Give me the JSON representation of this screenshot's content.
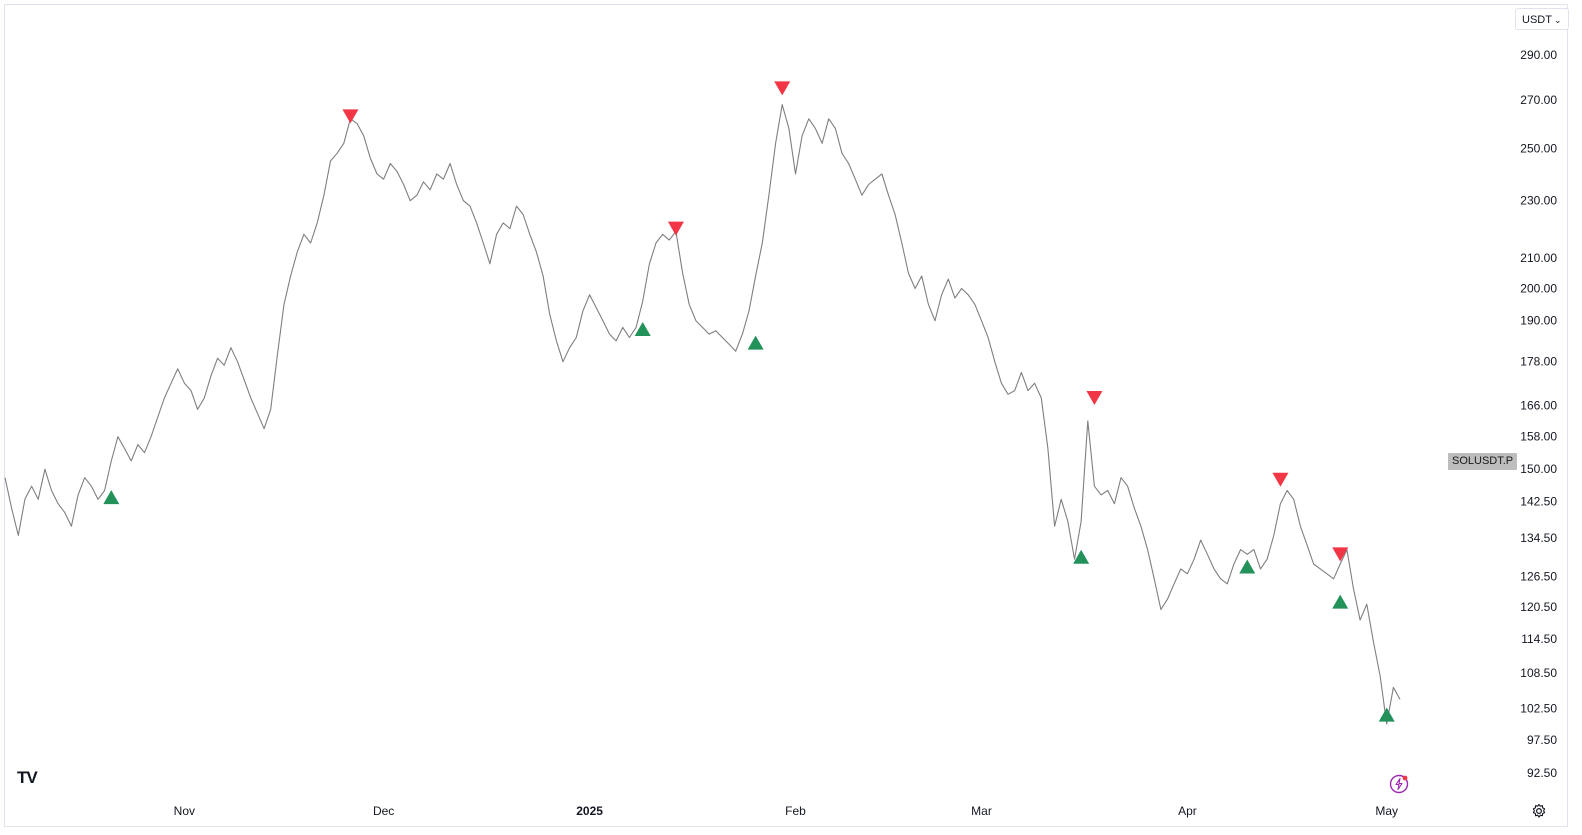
{
  "header": {
    "currency_label": "USDT"
  },
  "symbol_label": "SOLUSDT.P",
  "logo_text": "TV",
  "icons": {
    "currency_chevron": "chevron-down-icon",
    "logo": "tradingview-logo-icon",
    "bolt": "lightning-bolt-icon",
    "settings": "settings-icon"
  },
  "colors": {
    "line": "#7f7f7f",
    "buy_marker": "#22915a",
    "sell_marker": "#f23645",
    "axis_text": "#131722",
    "symbol_tag_bg": "#bdbdbd"
  },
  "chart_data": {
    "type": "line",
    "y_scale": "log",
    "ylim": [
      92.5,
      290
    ],
    "xlim": [
      "2024-10-05",
      "2025-05-03"
    ],
    "y_ticks": [
      "290.00",
      "270.00",
      "250.00",
      "230.00",
      "210.00",
      "200.00",
      "190.00",
      "178.00",
      "166.00",
      "158.00",
      "150.00",
      "142.50",
      "134.50",
      "126.50",
      "120.50",
      "114.50",
      "108.50",
      "102.50",
      "97.50",
      "92.50"
    ],
    "x_ticks": [
      {
        "date": "2024-11-01",
        "label": "Nov",
        "bold": false
      },
      {
        "date": "2024-12-01",
        "label": "Dec",
        "bold": false
      },
      {
        "date": "2025-01-01",
        "label": "2025",
        "bold": true
      },
      {
        "date": "2025-02-01",
        "label": "Feb",
        "bold": false
      },
      {
        "date": "2025-03-01",
        "label": "Mar",
        "bold": false
      },
      {
        "date": "2025-04-01",
        "label": "Apr",
        "bold": false
      },
      {
        "date": "2025-05-01",
        "label": "May",
        "bold": false
      }
    ],
    "series": [
      {
        "points": [
          [
            "2024-10-05",
            148
          ],
          [
            "2024-10-06",
            141
          ],
          [
            "2024-10-07",
            135
          ],
          [
            "2024-10-08",
            143
          ],
          [
            "2024-10-09",
            146
          ],
          [
            "2024-10-10",
            143
          ],
          [
            "2024-10-11",
            150
          ],
          [
            "2024-10-12",
            145
          ],
          [
            "2024-10-13",
            142
          ],
          [
            "2024-10-14",
            140
          ],
          [
            "2024-10-15",
            137
          ],
          [
            "2024-10-16",
            144
          ],
          [
            "2024-10-17",
            148
          ],
          [
            "2024-10-18",
            146
          ],
          [
            "2024-10-19",
            143
          ],
          [
            "2024-10-20",
            145
          ],
          [
            "2024-10-21",
            152
          ],
          [
            "2024-10-22",
            158
          ],
          [
            "2024-10-23",
            155
          ],
          [
            "2024-10-24",
            152
          ],
          [
            "2024-10-25",
            156
          ],
          [
            "2024-10-26",
            154
          ],
          [
            "2024-10-27",
            158
          ],
          [
            "2024-10-28",
            163
          ],
          [
            "2024-10-29",
            168
          ],
          [
            "2024-10-30",
            172
          ],
          [
            "2024-10-31",
            176
          ],
          [
            "2024-11-01",
            172
          ],
          [
            "2024-11-02",
            170
          ],
          [
            "2024-11-03",
            165
          ],
          [
            "2024-11-04",
            168
          ],
          [
            "2024-11-05",
            174
          ],
          [
            "2024-11-06",
            179
          ],
          [
            "2024-11-07",
            177
          ],
          [
            "2024-11-08",
            182
          ],
          [
            "2024-11-09",
            178
          ],
          [
            "2024-11-10",
            173
          ],
          [
            "2024-11-11",
            168
          ],
          [
            "2024-11-12",
            164
          ],
          [
            "2024-11-13",
            160
          ],
          [
            "2024-11-14",
            165
          ],
          [
            "2024-11-15",
            180
          ],
          [
            "2024-11-16",
            195
          ],
          [
            "2024-11-17",
            204
          ],
          [
            "2024-11-18",
            212
          ],
          [
            "2024-11-19",
            218
          ],
          [
            "2024-11-20",
            215
          ],
          [
            "2024-11-21",
            222
          ],
          [
            "2024-11-22",
            232
          ],
          [
            "2024-11-23",
            245
          ],
          [
            "2024-11-24",
            248
          ],
          [
            "2024-11-25",
            252
          ],
          [
            "2024-11-26",
            262
          ],
          [
            "2024-11-27",
            260
          ],
          [
            "2024-11-28",
            255
          ],
          [
            "2024-11-29",
            246
          ],
          [
            "2024-11-30",
            240
          ],
          [
            "2024-12-01",
            238
          ],
          [
            "2024-12-02",
            244
          ],
          [
            "2024-12-03",
            241
          ],
          [
            "2024-12-04",
            236
          ],
          [
            "2024-12-05",
            230
          ],
          [
            "2024-12-06",
            232
          ],
          [
            "2024-12-07",
            237
          ],
          [
            "2024-12-08",
            234
          ],
          [
            "2024-12-09",
            240
          ],
          [
            "2024-12-10",
            238
          ],
          [
            "2024-12-11",
            244
          ],
          [
            "2024-12-12",
            236
          ],
          [
            "2024-12-13",
            230
          ],
          [
            "2024-12-14",
            228
          ],
          [
            "2024-12-15",
            222
          ],
          [
            "2024-12-16",
            215
          ],
          [
            "2024-12-17",
            208
          ],
          [
            "2024-12-18",
            218
          ],
          [
            "2024-12-19",
            222
          ],
          [
            "2024-12-20",
            220
          ],
          [
            "2024-12-21",
            228
          ],
          [
            "2024-12-22",
            225
          ],
          [
            "2024-12-23",
            218
          ],
          [
            "2024-12-24",
            212
          ],
          [
            "2024-12-25",
            204
          ],
          [
            "2024-12-26",
            192
          ],
          [
            "2024-12-27",
            184
          ],
          [
            "2024-12-28",
            178
          ],
          [
            "2024-12-29",
            182
          ],
          [
            "2024-12-30",
            185
          ],
          [
            "2024-12-31",
            193
          ],
          [
            "2025-01-01",
            198
          ],
          [
            "2025-01-02",
            194
          ],
          [
            "2025-01-03",
            190
          ],
          [
            "2025-01-04",
            186
          ],
          [
            "2025-01-05",
            184
          ],
          [
            "2025-01-06",
            188
          ],
          [
            "2025-01-07",
            185
          ],
          [
            "2025-01-08",
            188
          ],
          [
            "2025-01-09",
            196
          ],
          [
            "2025-01-10",
            208
          ],
          [
            "2025-01-11",
            215
          ],
          [
            "2025-01-12",
            218
          ],
          [
            "2025-01-13",
            216
          ],
          [
            "2025-01-14",
            219
          ],
          [
            "2025-01-15",
            205
          ],
          [
            "2025-01-16",
            195
          ],
          [
            "2025-01-17",
            190
          ],
          [
            "2025-01-18",
            188
          ],
          [
            "2025-01-19",
            186
          ],
          [
            "2025-01-20",
            187
          ],
          [
            "2025-01-21",
            185
          ],
          [
            "2025-01-22",
            183
          ],
          [
            "2025-01-23",
            181
          ],
          [
            "2025-01-24",
            186
          ],
          [
            "2025-01-25",
            193
          ],
          [
            "2025-01-26",
            204
          ],
          [
            "2025-01-27",
            215
          ],
          [
            "2025-01-28",
            232
          ],
          [
            "2025-01-29",
            252
          ],
          [
            "2025-01-30",
            268
          ],
          [
            "2025-01-31",
            258
          ],
          [
            "2025-02-01",
            240
          ],
          [
            "2025-02-02",
            255
          ],
          [
            "2025-02-03",
            262
          ],
          [
            "2025-02-04",
            258
          ],
          [
            "2025-02-05",
            252
          ],
          [
            "2025-02-06",
            262
          ],
          [
            "2025-02-07",
            258
          ],
          [
            "2025-02-08",
            248
          ],
          [
            "2025-02-09",
            244
          ],
          [
            "2025-02-10",
            238
          ],
          [
            "2025-02-11",
            232
          ],
          [
            "2025-02-12",
            236
          ],
          [
            "2025-02-13",
            238
          ],
          [
            "2025-02-14",
            240
          ],
          [
            "2025-02-15",
            232
          ],
          [
            "2025-02-16",
            225
          ],
          [
            "2025-02-17",
            215
          ],
          [
            "2025-02-18",
            205
          ],
          [
            "2025-02-19",
            200
          ],
          [
            "2025-02-20",
            204
          ],
          [
            "2025-02-21",
            195
          ],
          [
            "2025-02-22",
            190
          ],
          [
            "2025-02-23",
            198
          ],
          [
            "2025-02-24",
            203
          ],
          [
            "2025-02-25",
            197
          ],
          [
            "2025-02-26",
            200
          ],
          [
            "2025-02-27",
            198
          ],
          [
            "2025-02-28",
            195
          ],
          [
            "2025-03-01",
            190
          ],
          [
            "2025-03-02",
            185
          ],
          [
            "2025-03-03",
            178
          ],
          [
            "2025-03-04",
            172
          ],
          [
            "2025-03-05",
            169
          ],
          [
            "2025-03-06",
            170
          ],
          [
            "2025-03-07",
            175
          ],
          [
            "2025-03-08",
            170
          ],
          [
            "2025-03-09",
            172
          ],
          [
            "2025-03-10",
            168
          ],
          [
            "2025-03-11",
            155
          ],
          [
            "2025-03-12",
            137
          ],
          [
            "2025-03-13",
            143
          ],
          [
            "2025-03-14",
            138
          ],
          [
            "2025-03-15",
            130
          ],
          [
            "2025-03-16",
            138
          ],
          [
            "2025-03-17",
            162
          ],
          [
            "2025-03-18",
            146
          ],
          [
            "2025-03-19",
            144
          ],
          [
            "2025-03-20",
            145
          ],
          [
            "2025-03-21",
            142
          ],
          [
            "2025-03-22",
            148
          ],
          [
            "2025-03-23",
            146
          ],
          [
            "2025-03-24",
            141
          ],
          [
            "2025-03-25",
            137
          ],
          [
            "2025-03-26",
            132
          ],
          [
            "2025-03-27",
            126
          ],
          [
            "2025-03-28",
            120
          ],
          [
            "2025-03-29",
            122
          ],
          [
            "2025-03-30",
            125
          ],
          [
            "2025-03-31",
            128
          ],
          [
            "2025-04-01",
            127
          ],
          [
            "2025-04-02",
            130
          ],
          [
            "2025-04-03",
            134
          ],
          [
            "2025-04-04",
            131
          ],
          [
            "2025-04-05",
            128
          ],
          [
            "2025-04-06",
            126
          ],
          [
            "2025-04-07",
            125
          ],
          [
            "2025-04-08",
            129
          ],
          [
            "2025-04-09",
            132
          ],
          [
            "2025-04-10",
            131
          ],
          [
            "2025-04-11",
            132
          ],
          [
            "2025-04-12",
            128
          ],
          [
            "2025-04-13",
            130
          ],
          [
            "2025-04-14",
            135
          ],
          [
            "2025-04-15",
            142
          ],
          [
            "2025-04-16",
            145
          ],
          [
            "2025-04-17",
            143
          ],
          [
            "2025-04-18",
            137
          ],
          [
            "2025-04-19",
            133
          ],
          [
            "2025-04-20",
            129
          ],
          [
            "2025-04-21",
            128
          ],
          [
            "2025-04-22",
            127
          ],
          [
            "2025-04-23",
            126
          ],
          [
            "2025-04-24",
            129
          ],
          [
            "2025-04-25",
            132
          ],
          [
            "2025-04-26",
            124
          ],
          [
            "2025-04-27",
            118
          ],
          [
            "2025-04-28",
            121
          ],
          [
            "2025-04-29",
            114
          ],
          [
            "2025-04-30",
            108
          ],
          [
            "2025-05-01",
            100
          ],
          [
            "2025-05-02",
            106
          ],
          [
            "2025-05-03",
            104
          ]
        ]
      }
    ],
    "markers": [
      {
        "type": "buy",
        "date": "2024-10-21",
        "price": 143.5
      },
      {
        "type": "sell",
        "date": "2024-11-26",
        "price": 263
      },
      {
        "type": "buy",
        "date": "2025-01-09",
        "price": 187.5
      },
      {
        "type": "sell",
        "date": "2025-01-14",
        "price": 220
      },
      {
        "type": "buy",
        "date": "2025-01-26",
        "price": 183.5
      },
      {
        "type": "sell",
        "date": "2025-01-30",
        "price": 275
      },
      {
        "type": "sell",
        "date": "2025-03-18",
        "price": 168
      },
      {
        "type": "buy",
        "date": "2025-03-16",
        "price": 130.5
      },
      {
        "type": "buy",
        "date": "2025-04-10",
        "price": 128.5
      },
      {
        "type": "sell",
        "date": "2025-04-15",
        "price": 147.5
      },
      {
        "type": "sell",
        "date": "2025-04-24",
        "price": 131
      },
      {
        "type": "buy",
        "date": "2025-04-24",
        "price": 121.5
      },
      {
        "type": "buy",
        "date": "2025-05-01",
        "price": 101.5
      }
    ]
  }
}
